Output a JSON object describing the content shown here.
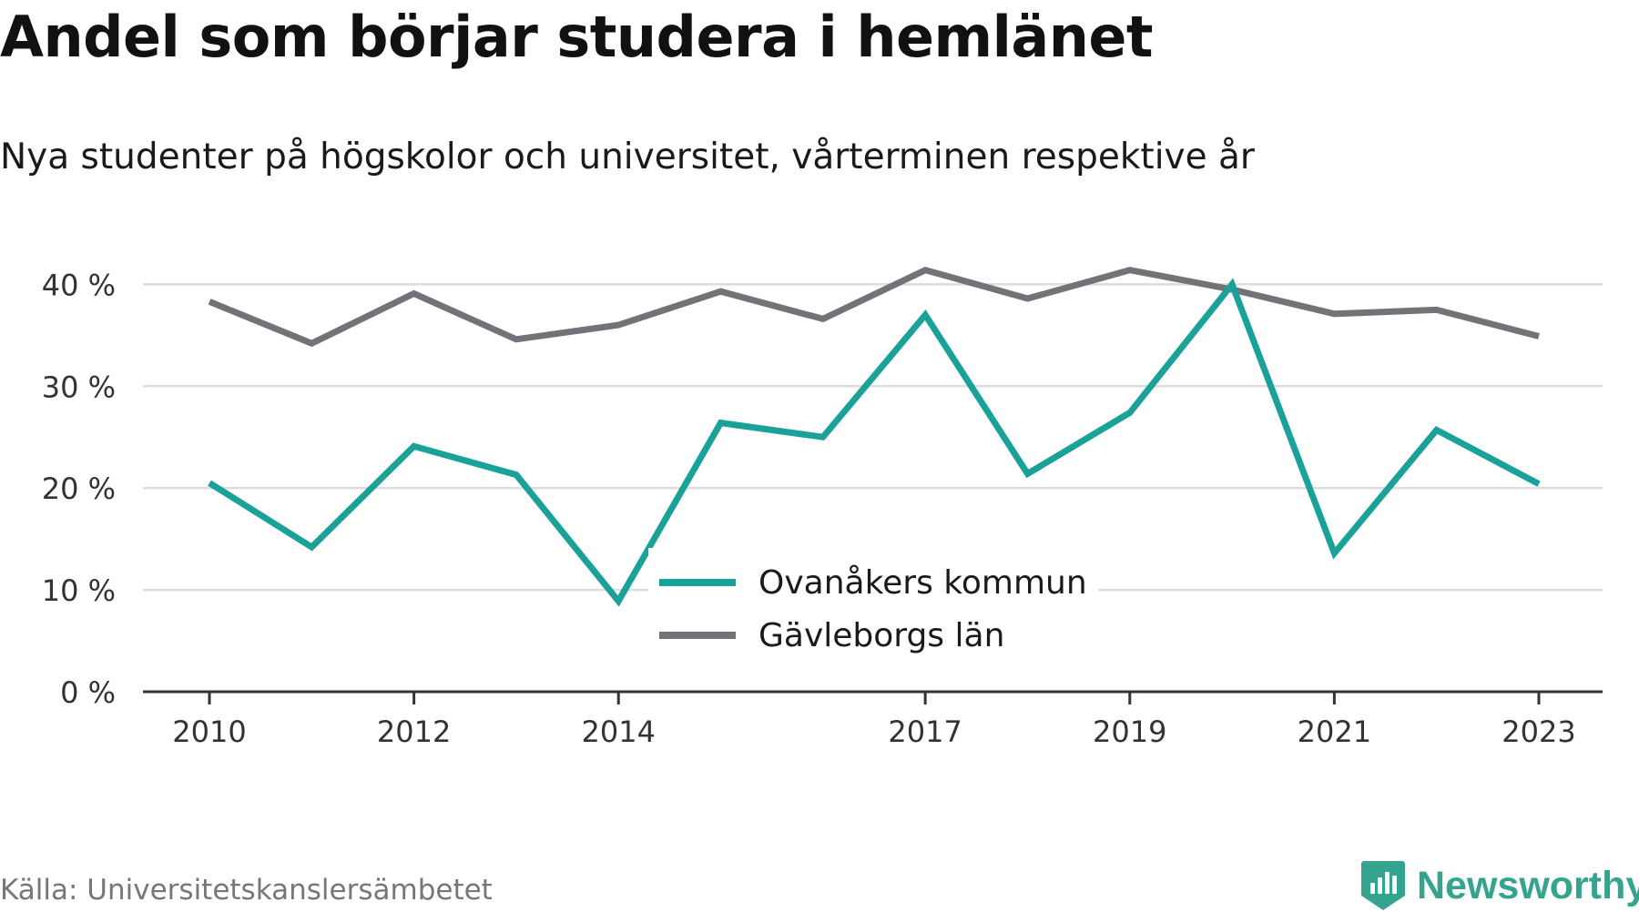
{
  "chart_data": {
    "type": "line",
    "title": "Andel som börjar studera i hemlänet",
    "subtitle": "Nya studenter på högskolor och universitet, vårterminen respektive år",
    "x": [
      2010,
      2011,
      2012,
      2013,
      2014,
      2015,
      2016,
      2017,
      2018,
      2019,
      2020,
      2021,
      2022,
      2023
    ],
    "x_tick_labels": [
      "2010",
      "2012",
      "2014",
      "2017",
      "2019",
      "2021",
      "2023"
    ],
    "y_ticks": [
      0,
      10,
      20,
      30,
      40
    ],
    "y_tick_labels": [
      "0 %",
      "10 %",
      "20 %",
      "30 %",
      "40 %"
    ],
    "ylim": [
      0,
      42
    ],
    "grid": true,
    "legend_position": "center",
    "series": [
      {
        "name": "Ovanåkers kommun",
        "color": "#1aa19a",
        "values": [
          20.5,
          14.2,
          24.1,
          21.3,
          8.9,
          26.4,
          25.0,
          37.0,
          21.4,
          27.4,
          40.0,
          13.6,
          25.7,
          20.4
        ]
      },
      {
        "name": "Gävleborgs län",
        "color": "#737278",
        "values": [
          38.3,
          34.2,
          39.1,
          34.6,
          36.0,
          39.3,
          36.6,
          41.4,
          38.6,
          41.4,
          39.5,
          37.1,
          37.5,
          34.9
        ]
      }
    ]
  },
  "footer": {
    "source": "Källa: Universitetskanslersämbetet",
    "brand": "Newsworthy",
    "logo_icon": "bar-chart-badge-icon",
    "brand_color": "#34a48f"
  }
}
